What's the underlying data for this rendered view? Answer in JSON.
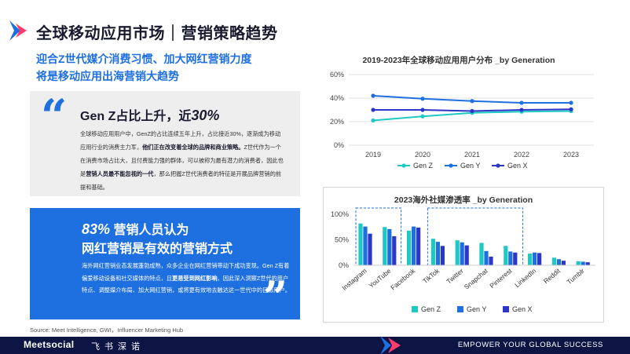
{
  "page": {
    "title": "全球移动应用市场｜营销策略趋势",
    "subtitle_line1": "迎合Z世代媒介消费习惯、加大网红营销力度",
    "subtitle_line2": "将是移动应用出海营销大趋势"
  },
  "quote_box": {
    "head_prefix": "Gen Z占比上升，近",
    "head_value": "30%",
    "body_1": "全球移动应用用户中，GenZ的占比连续五年上升，占比接近30%，逐渐成为移动应用行业的消费主力军，",
    "body_bold": "他们正在改变着全球的品牌和商业策略。",
    "body_2": "Z世代作为一个在消费市场占比大，且付费能力强的群体，可以被称为最有潜力的消费者，因此也是",
    "body_bold_2": "营销人员最不能忽视的一代",
    "body_3": "，那么把握Z世代消费者的特征是开展品牌营销的前提和基础。"
  },
  "blue_box": {
    "head_value": "83%",
    "head_1": " 营销人员认为",
    "head_2": "网红营销是有效的营销方式",
    "body_1": "海外网红营销业态发展蓬勃成熟，众多企业在网红营销带动下成功变现。Gen Z有着偏爱移动设备和社交媒体的特点，且",
    "body_bold": "更易受到网红影响",
    "body_2": "，因此深入洞察Z世代的用户特点、调整媒介布局、加大网红营销，或将更有效地去触达这一世代中的目标用户。"
  },
  "source": "Source: Meet Intelligence, GWI，Influencer Marketing Hub",
  "footer": {
    "brand": "Meetsocial",
    "brand_cn": "飞书深诺",
    "slogan": "EMPOWER YOUR GLOBAL SUCCESS"
  },
  "colors": {
    "gen_z": "#1fc9c3",
    "gen_y": "#1e6fe0",
    "gen_x": "#2c36c9",
    "accent": "#1e6fe0",
    "footer": "#0d1545"
  },
  "chart_data": [
    {
      "type": "line",
      "title": "2019-2023年全球移动应用用户分布 _by Generation",
      "x": [
        "2019",
        "2020",
        "2021",
        "2022",
        "2023"
      ],
      "ylim": [
        0,
        60
      ],
      "yticks": [
        "0%",
        "20%",
        "40%",
        "60%"
      ],
      "ytick_values": [
        0,
        20,
        40,
        60
      ],
      "grid": true,
      "legend": "bottom",
      "series": [
        {
          "name": "Gen Z",
          "values": [
            21,
            24.5,
            27.5,
            28.5,
            29
          ]
        },
        {
          "name": "Gen Y",
          "values": [
            42,
            39.5,
            37.5,
            36,
            36
          ]
        },
        {
          "name": "Gen X",
          "values": [
            30,
            30,
            29,
            30,
            30.5
          ]
        }
      ]
    },
    {
      "type": "bar",
      "title": "2023海外社媒渗透率 _by Generation",
      "categories": [
        "Instagram",
        "YouTube",
        "Facebook",
        "TikTok",
        "Twitter",
        "Snapchat",
        "Pinterest",
        "LinkedIn",
        "Reddit",
        "Tumblr"
      ],
      "ylim": [
        0,
        100
      ],
      "yticks": [
        "0%",
        "50%",
        "100%"
      ],
      "ytick_values": [
        0,
        50,
        100
      ],
      "legend": "bottom",
      "series": [
        {
          "name": "Gen Z",
          "values": [
            82,
            75,
            68,
            52,
            49,
            44,
            38,
            23,
            15,
            8
          ]
        },
        {
          "name": "Gen Y",
          "values": [
            76,
            71,
            76,
            46,
            45,
            28,
            27,
            25,
            12,
            7
          ]
        },
        {
          "name": "Gen X",
          "values": [
            62,
            57,
            74,
            38,
            39,
            17,
            25,
            24,
            9,
            6
          ]
        }
      ]
    }
  ]
}
